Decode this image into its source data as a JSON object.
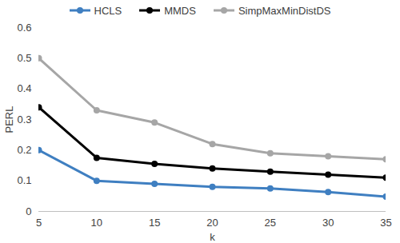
{
  "chart_data": {
    "type": "line",
    "x_label": "k",
    "y_label": "PERL",
    "x": [
      5,
      10,
      15,
      20,
      25,
      30,
      35
    ],
    "xlim": [
      5,
      35
    ],
    "xticks": [
      5,
      10,
      15,
      20,
      25,
      30,
      35
    ],
    "ylim": [
      0,
      0.6
    ],
    "yticks": [
      0,
      0.1,
      0.2,
      0.3,
      0.4,
      0.5,
      0.6
    ],
    "grid": false,
    "legend": "top",
    "marker": "circle",
    "series": [
      {
        "name": "HCLS",
        "color": "#3f7fc1",
        "values": [
          0.2,
          0.1,
          0.09,
          0.08,
          0.075,
          0.063,
          0.048
        ]
      },
      {
        "name": "MMDS",
        "color": "#000000",
        "values": [
          0.34,
          0.175,
          0.155,
          0.14,
          0.13,
          0.12,
          0.11
        ]
      },
      {
        "name": "SimpMaxMinDistDS",
        "color": "#a6a6a6",
        "values": [
          0.5,
          0.33,
          0.29,
          0.22,
          0.19,
          0.18,
          0.17
        ]
      }
    ]
  }
}
